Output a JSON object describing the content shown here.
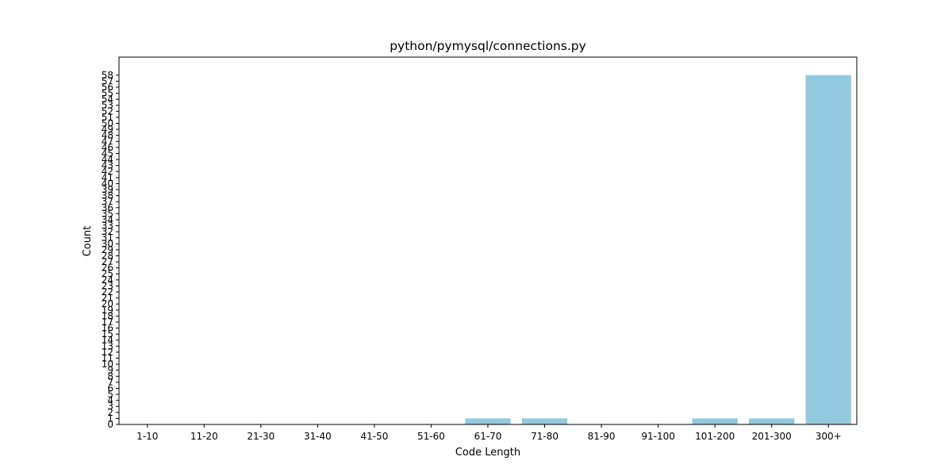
{
  "chart_data": {
    "type": "bar",
    "title": "python/pymysql/connections.py",
    "xlabel": "Code Length",
    "ylabel": "Count",
    "categories": [
      "1-10",
      "11-20",
      "21-30",
      "31-40",
      "41-50",
      "51-60",
      "61-70",
      "71-80",
      "81-90",
      "91-100",
      "101-200",
      "201-300",
      "300+"
    ],
    "values": [
      0,
      0,
      0,
      0,
      0,
      0,
      1,
      1,
      0,
      0,
      1,
      1,
      58
    ],
    "ylim": [
      0,
      61
    ],
    "yticks": [
      0,
      1,
      2,
      3,
      4,
      5,
      6,
      7,
      8,
      9,
      10,
      11,
      12,
      13,
      14,
      15,
      16,
      17,
      18,
      19,
      20,
      21,
      22,
      23,
      24,
      25,
      26,
      27,
      28,
      29,
      30,
      31,
      32,
      33,
      34,
      35,
      36,
      37,
      38,
      39,
      40,
      41,
      42,
      43,
      44,
      45,
      46,
      47,
      48,
      49,
      50,
      51,
      52,
      53,
      54,
      55,
      56,
      57,
      58
    ],
    "bar_color": "#92c9de",
    "grid": false,
    "legend": "none"
  }
}
